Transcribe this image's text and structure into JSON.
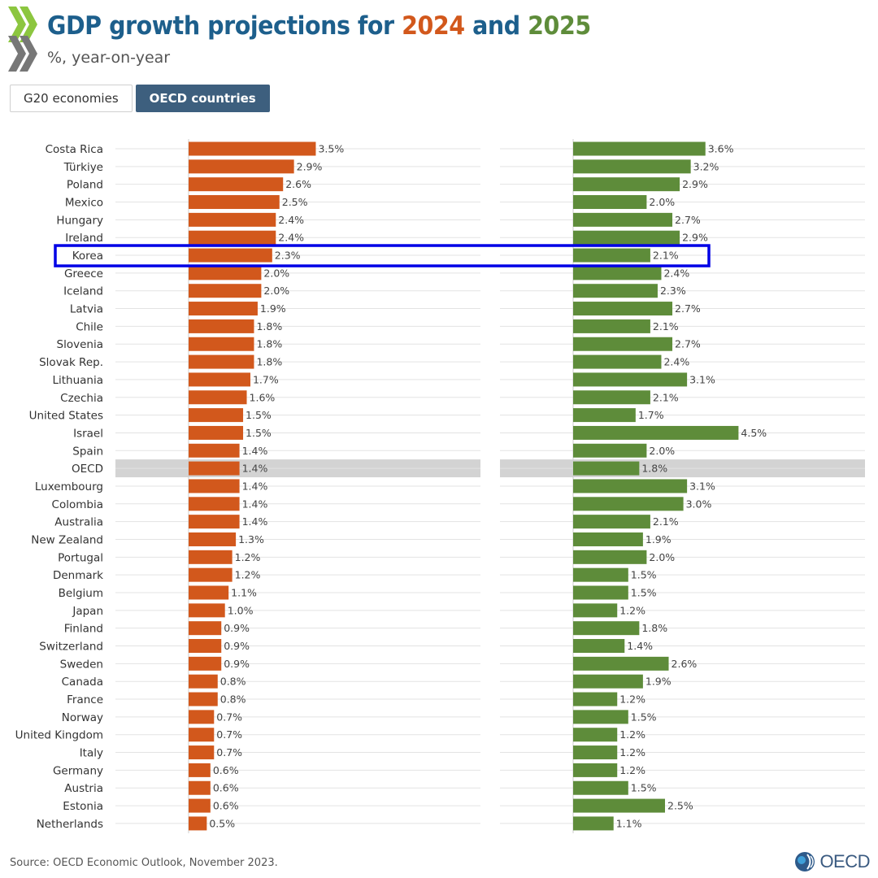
{
  "header": {
    "title_prefix": "GDP growth projections for",
    "title_year1": "2024",
    "title_and": "and",
    "title_year2": "2025",
    "subtitle": "%, year-on-year"
  },
  "tabs": [
    {
      "label": "G20 economies",
      "active": false
    },
    {
      "label": "OECD countries",
      "active": true
    }
  ],
  "colors": {
    "series_2024": "#d2581c",
    "series_2025": "#5e8c3a",
    "title": "#1d5f8c",
    "highlight_row_bg": "#d3d3d3",
    "annotation_box": "#0000e6"
  },
  "chart_data": {
    "type": "bar",
    "orientation": "horizontal",
    "categories": [
      "Costa Rica",
      "Türkiye",
      "Poland",
      "Mexico",
      "Hungary",
      "Ireland",
      "Korea",
      "Greece",
      "Iceland",
      "Latvia",
      "Chile",
      "Slovenia",
      "Slovak Rep.",
      "Lithuania",
      "Czechia",
      "United States",
      "Israel",
      "Spain",
      "OECD",
      "Luxembourg",
      "Colombia",
      "Australia",
      "New Zealand",
      "Portugal",
      "Denmark",
      "Belgium",
      "Japan",
      "Finland",
      "Switzerland",
      "Sweden",
      "Canada",
      "France",
      "Norway",
      "United Kingdom",
      "Italy",
      "Germany",
      "Austria",
      "Estonia",
      "Netherlands"
    ],
    "series": [
      {
        "values": [
          3.5,
          2.9,
          2.6,
          2.5,
          2.4,
          2.4,
          2.3,
          2.0,
          2.0,
          1.9,
          1.8,
          1.8,
          1.8,
          1.7,
          1.6,
          1.5,
          1.5,
          1.4,
          1.4,
          1.4,
          1.4,
          1.4,
          1.3,
          1.2,
          1.2,
          1.1,
          1.0,
          0.9,
          0.9,
          0.9,
          0.8,
          0.8,
          0.7,
          0.7,
          0.7,
          0.6,
          0.6,
          0.6,
          0.5
        ]
      },
      {
        "values": [
          3.6,
          3.2,
          2.9,
          2.0,
          2.7,
          2.9,
          2.1,
          2.4,
          2.3,
          2.7,
          2.1,
          2.7,
          2.4,
          3.1,
          2.1,
          1.7,
          4.5,
          2.0,
          1.8,
          3.1,
          3.0,
          2.1,
          1.9,
          2.0,
          1.5,
          1.5,
          1.2,
          1.8,
          1.4,
          2.6,
          1.9,
          1.2,
          1.5,
          1.2,
          1.2,
          1.2,
          1.5,
          2.5,
          1.1
        ]
      }
    ],
    "value_suffix": "%",
    "highlighted_category": "OECD",
    "annotated_category": "Korea",
    "grid": true
  },
  "footer": {
    "source": "Source: OECD Economic Outlook, November 2023.",
    "logo_text": "OECD"
  }
}
